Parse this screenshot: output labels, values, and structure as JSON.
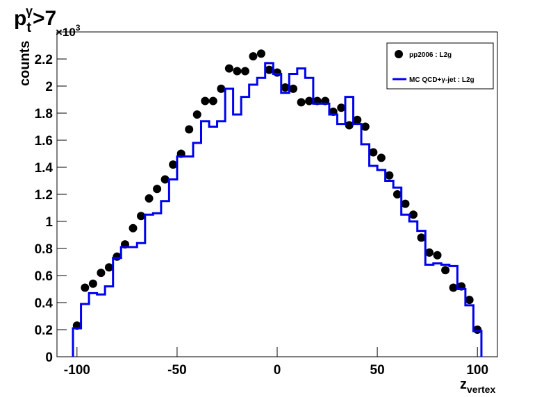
{
  "chart_data": {
    "type": "combo",
    "title": {
      "base": "p",
      "sub": "t",
      "sup": "γ",
      "rest": ">7"
    },
    "x_label": {
      "base": "z",
      "sub": "vertex"
    },
    "y_label": "counts",
    "y_multiplier": {
      "base": "×10",
      "sup": "3"
    },
    "xlim": [
      -110,
      110
    ],
    "xticks": [
      -100,
      -50,
      0,
      50,
      100
    ],
    "ylim": [
      0,
      2.4
    ],
    "yticks": [
      0,
      0.2,
      0.4,
      0.6,
      0.8,
      1,
      1.2,
      1.4,
      1.6,
      1.8,
      2,
      2.2
    ],
    "legend": "top-right",
    "series": [
      {
        "name": "pp2006 : L2g",
        "type": "scatter",
        "color": "#000000",
        "x": [
          -100,
          -96,
          -92,
          -88,
          -84,
          -80,
          -76,
          -72,
          -68,
          -64,
          -60,
          -56,
          -52,
          -48,
          -44,
          -40,
          -36,
          -32,
          -28,
          -24,
          -20,
          -16,
          -12,
          -8,
          -4,
          0,
          4,
          8,
          12,
          16,
          20,
          24,
          28,
          32,
          36,
          40,
          44,
          48,
          52,
          56,
          60,
          64,
          68,
          72,
          76,
          80,
          84,
          88,
          92,
          96,
          100
        ],
        "values": [
          0.23,
          0.51,
          0.54,
          0.62,
          0.66,
          0.74,
          0.83,
          0.95,
          1.04,
          1.17,
          1.24,
          1.31,
          1.42,
          1.5,
          1.68,
          1.79,
          1.89,
          1.89,
          1.98,
          2.13,
          2.11,
          2.11,
          2.22,
          2.24,
          2.12,
          2.1,
          1.99,
          1.98,
          1.88,
          1.89,
          1.89,
          1.89,
          1.81,
          1.84,
          1.71,
          1.75,
          1.7,
          1.51,
          1.47,
          1.34,
          1.2,
          1.13,
          1.05,
          0.88,
          0.77,
          0.75,
          0.64,
          0.51,
          0.52,
          0.42,
          0.2
        ]
      },
      {
        "name": "MC QCD+γ-jet : L2g",
        "type": "step",
        "color": "#0000ee",
        "bins": [
          -102,
          -98,
          -94,
          -90,
          -86,
          -82,
          -78,
          -74,
          -70,
          -66,
          -62,
          -58,
          -54,
          -50,
          -46,
          -42,
          -38,
          -34,
          -30,
          -26,
          -22,
          -18,
          -14,
          -10,
          -6,
          -2,
          2,
          6,
          10,
          14,
          18,
          22,
          26,
          30,
          34,
          38,
          42,
          46,
          50,
          54,
          58,
          62,
          66,
          70,
          74,
          78,
          82,
          86,
          90,
          94,
          98,
          102
        ],
        "values": [
          0.21,
          0.39,
          0.47,
          0.46,
          0.52,
          0.73,
          0.81,
          0.81,
          0.84,
          1.05,
          1.06,
          1.15,
          1.31,
          1.48,
          1.48,
          1.58,
          1.74,
          1.7,
          1.74,
          1.98,
          1.79,
          1.92,
          2.01,
          2.06,
          2.17,
          2.09,
          1.95,
          2.09,
          2.13,
          2.06,
          1.87,
          1.87,
          1.79,
          1.72,
          1.92,
          1.72,
          1.57,
          1.41,
          1.38,
          1.3,
          1.25,
          1.05,
          1,
          0.93,
          0.68,
          0.69,
          0.68,
          0.67,
          0.5,
          0.38,
          0.19
        ]
      }
    ]
  }
}
